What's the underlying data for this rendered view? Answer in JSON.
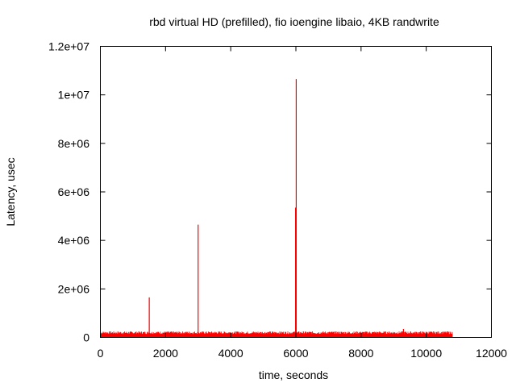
{
  "chart_data": {
    "type": "line",
    "title": "rbd virtual HD (prefilled), fio ioengine libaio, 4KB randwrite",
    "xlabel": "time, seconds",
    "ylabel": "Latency, usec",
    "xlim": [
      0,
      12000
    ],
    "ylim": [
      0,
      12000000
    ],
    "xticks": [
      0,
      2000,
      4000,
      6000,
      8000,
      10000,
      12000
    ],
    "xtick_labels": [
      "0",
      "2000",
      "4000",
      "6000",
      "8000",
      "10000",
      "12000"
    ],
    "yticks": [
      0,
      2000000,
      4000000,
      6000000,
      8000000,
      10000000,
      12000000
    ],
    "ytick_labels": [
      "0",
      "2e+06",
      "4e+06",
      "6e+06",
      "8e+06",
      "1e+07",
      "1.2e+07"
    ],
    "grid": false,
    "series": [
      {
        "color": "#ff0000",
        "baseline_band": {
          "x_start": 0,
          "x_end": 10800,
          "y_low": 0,
          "y_high": 250000
        },
        "spikes": [
          {
            "x": 1500,
            "y": 1650000
          },
          {
            "x": 3000,
            "y": 4650000
          },
          {
            "x": 5990,
            "y": 5350000
          },
          {
            "x": 6010,
            "y": 10650000
          },
          {
            "x": 9300,
            "y": 350000
          }
        ]
      }
    ]
  }
}
